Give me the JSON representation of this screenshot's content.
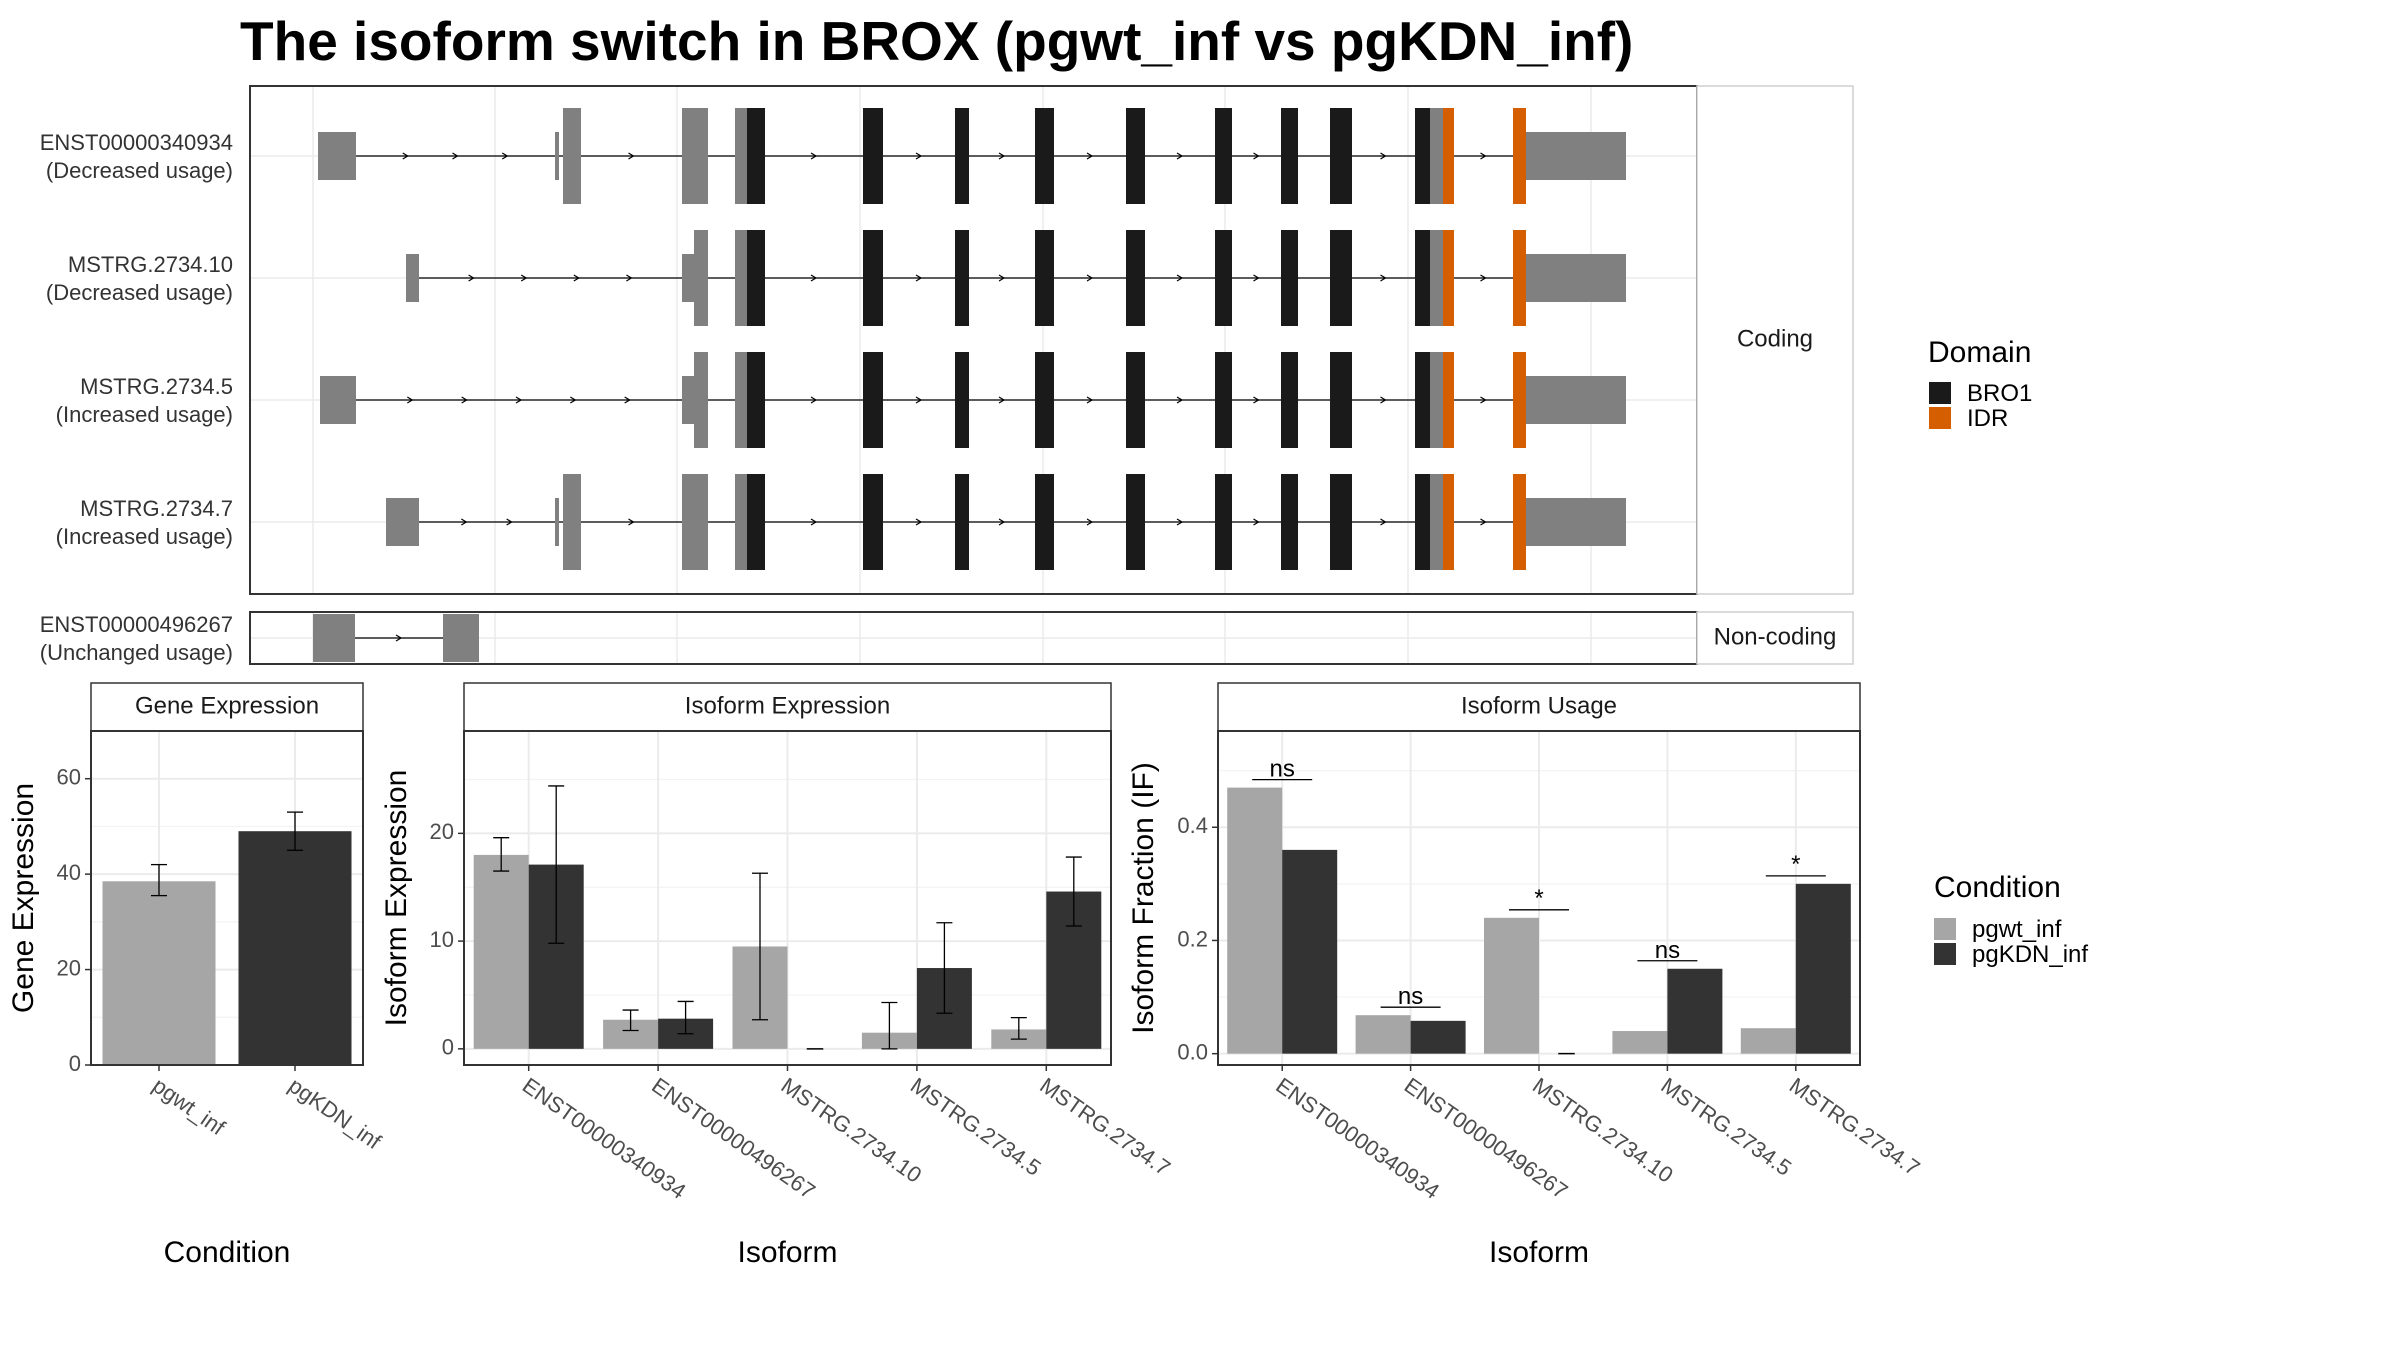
{
  "chart_data": {
    "title": "The isoform switch in BROX (pgwt_inf vs pgKDN_inf)",
    "colors": {
      "utr": "#808080",
      "bro1": "#1a1a1a",
      "idr": "#d55e00",
      "pgwt_inf": "#a6a6a6",
      "pgKDN_inf": "#333333"
    },
    "gene_structure": {
      "type": "gene-structure",
      "coding_label": "Coding",
      "noncoding_label": "Non-coding",
      "domain_legend_title": "Domain",
      "domains": [
        "BRO1",
        "IDR"
      ],
      "transcripts": [
        {
          "id": "ENST00000340934",
          "status": "(Decreased usage)",
          "group": "coding"
        },
        {
          "id": "MSTRG.2734.10",
          "status": "(Decreased usage)",
          "group": "coding"
        },
        {
          "id": "MSTRG.2734.5",
          "status": "(Increased usage)",
          "group": "coding"
        },
        {
          "id": "MSTRG.2734.7",
          "status": "(Increased usage)",
          "group": "coding"
        },
        {
          "id": "ENST00000496267",
          "status": "(Unchanged usage)",
          "group": "noncoding"
        }
      ]
    },
    "gene_expression": {
      "type": "bar",
      "strip": "Gene Expression",
      "xlabel": "Condition",
      "ylabel": "Gene Expression",
      "categories": [
        "pgwt_inf",
        "pgKDN_inf"
      ],
      "values": [
        38.5,
        49
      ],
      "err_low": [
        35.5,
        45
      ],
      "err_high": [
        42,
        53
      ],
      "ylim": [
        0,
        70
      ],
      "yticks": [
        "0",
        "20",
        "40",
        "60"
      ]
    },
    "isoform_expression": {
      "type": "bar",
      "strip": "Isoform Expression",
      "xlabel": "Isoform",
      "ylabel": "Isoform Expression",
      "categories": [
        "ENST00000340934",
        "ENST00000496267",
        "MSTRG.2734.10",
        "MSTRG.2734.5",
        "MSTRG.2734.7"
      ],
      "series": [
        {
          "name": "pgwt_inf",
          "values": [
            18,
            2.7,
            9.5,
            1.5,
            1.8
          ],
          "err_low": [
            16.5,
            1.7,
            2.7,
            0,
            0.9
          ],
          "err_high": [
            19.6,
            3.6,
            16.3,
            4.3,
            2.9
          ]
        },
        {
          "name": "pgKDN_inf",
          "values": [
            17.1,
            2.8,
            0,
            7.5,
            14.6
          ],
          "err_low": [
            9.8,
            1.4,
            0,
            3.3,
            11.4
          ],
          "err_high": [
            24.4,
            4.4,
            0,
            11.7,
            17.8
          ]
        }
      ],
      "ylim": [
        -1.5,
        29.5
      ],
      "yticks": [
        "0",
        "10",
        "20"
      ]
    },
    "isoform_usage": {
      "type": "bar",
      "strip": "Isoform Usage",
      "xlabel": "Isoform",
      "ylabel": "Isoform Fraction (IF)",
      "categories": [
        "ENST00000340934",
        "ENST00000496267",
        "MSTRG.2734.10",
        "MSTRG.2734.5",
        "MSTRG.2734.7"
      ],
      "series": [
        {
          "name": "pgwt_inf",
          "values": [
            0.47,
            0.068,
            0.24,
            0.04,
            0.045
          ]
        },
        {
          "name": "pgKDN_inf",
          "values": [
            0.36,
            0.058,
            0,
            0.15,
            0.3
          ]
        }
      ],
      "significance": [
        "ns",
        "ns",
        "*",
        "ns",
        "*"
      ],
      "ylim": [
        -0.02,
        0.57
      ],
      "yticks": [
        "0.0",
        "0.2",
        "0.4"
      ]
    },
    "condition_legend_title": "Condition",
    "conditions": [
      "pgwt_inf",
      "pgKDN_inf"
    ]
  }
}
